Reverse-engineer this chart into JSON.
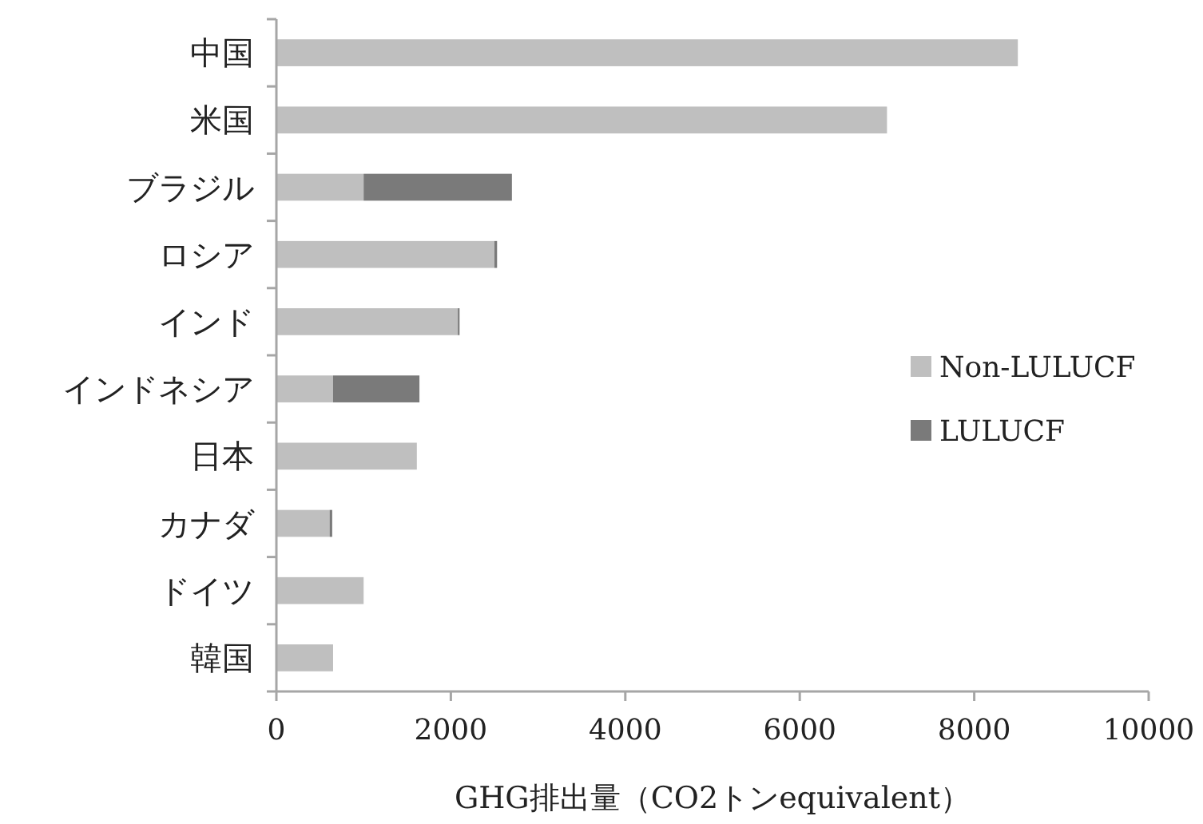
{
  "chart_data": {
    "type": "bar",
    "orientation": "horizontal",
    "stacked": true,
    "categories": [
      "中国",
      "米国",
      "ブラジル",
      "ロシア",
      "インド",
      "インドネシア",
      "日本",
      "カナダ",
      "ドイツ",
      "韓国"
    ],
    "series": [
      {
        "name": "Non-LULUCF",
        "color": "#bfbfbf",
        "values": [
          8500,
          7000,
          1000,
          2500,
          2080,
          650,
          1610,
          610,
          1000,
          650
        ]
      },
      {
        "name": "LULUCF",
        "color": "#7a7a7a",
        "values": [
          0,
          0,
          1700,
          30,
          20,
          990,
          0,
          30,
          0,
          0
        ]
      }
    ],
    "xlabel": "GHG排出量（CO2トンequivalent）",
    "xlim": [
      0,
      10000
    ],
    "xticks": [
      0,
      2000,
      4000,
      6000,
      8000,
      10000
    ],
    "grid": false,
    "legend": "right"
  }
}
